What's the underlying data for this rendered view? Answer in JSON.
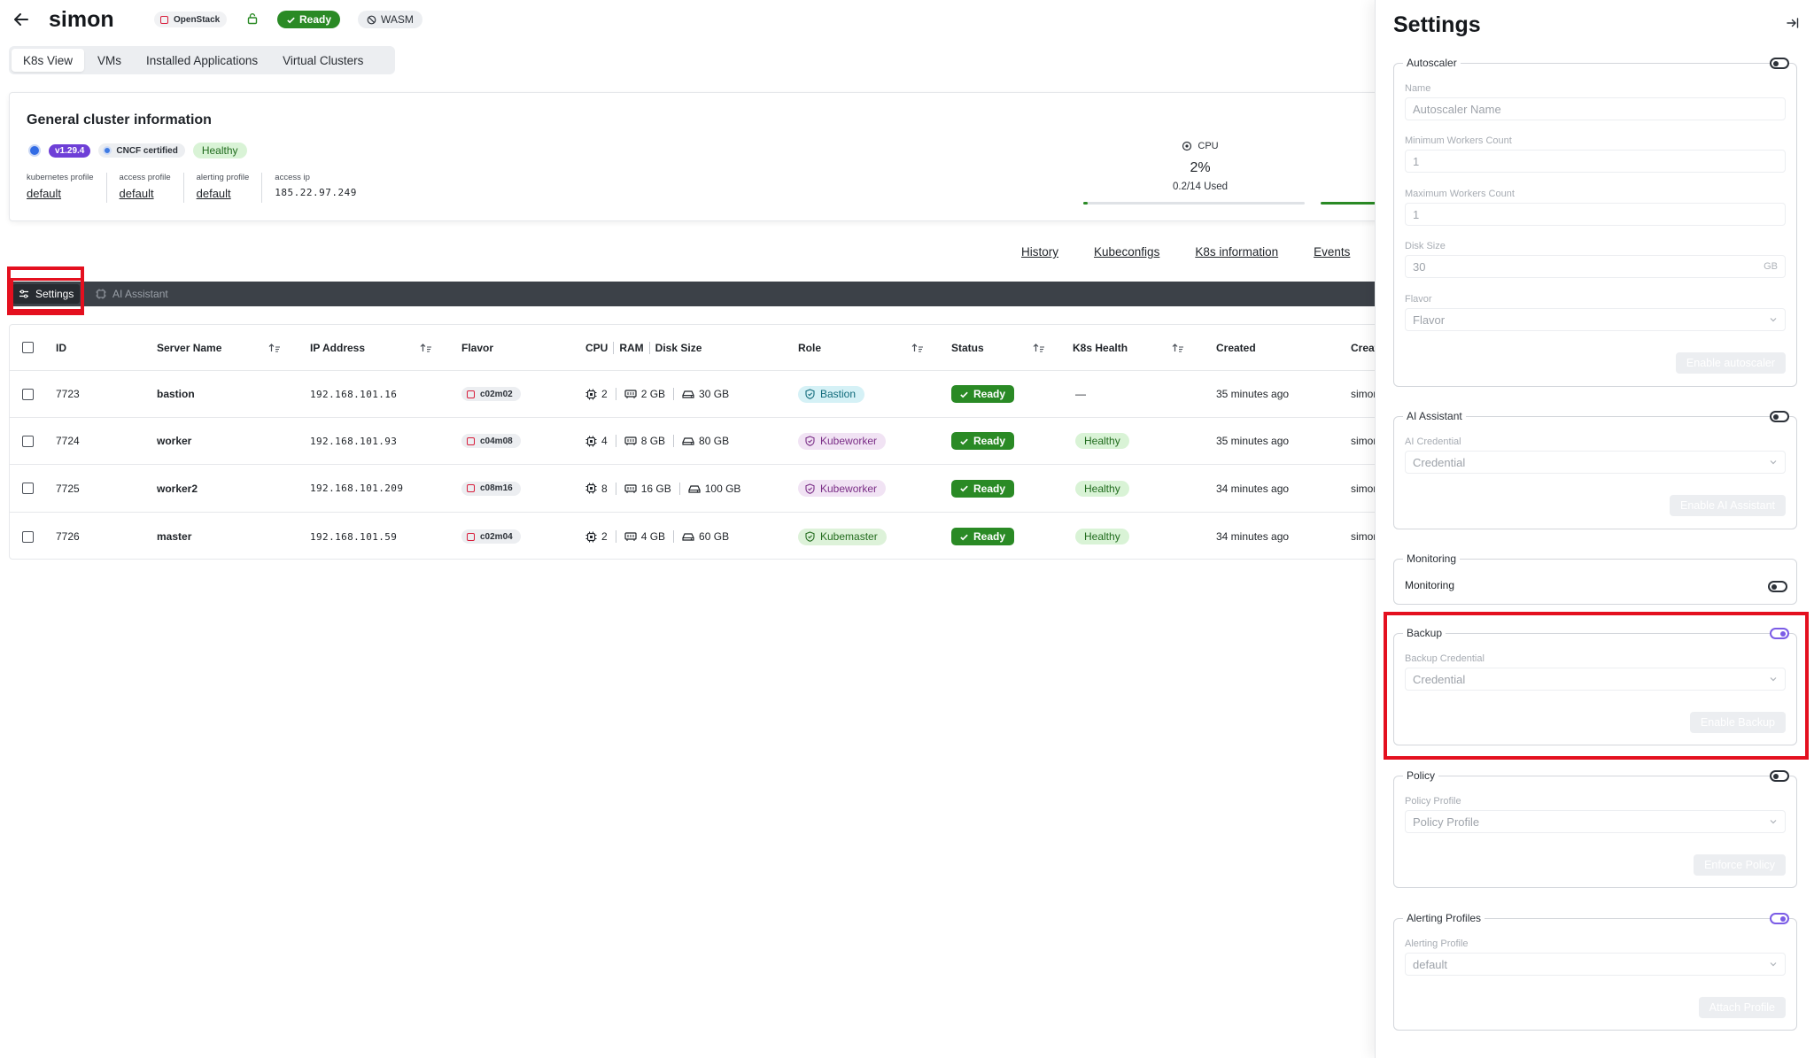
{
  "header": {
    "cluster_name": "simon",
    "provider": "OpenStack",
    "status": "Ready",
    "runtime": "WASM"
  },
  "tabs": [
    "K8s View",
    "VMs",
    "Installed Applications",
    "Virtual Clusters"
  ],
  "info": {
    "title": "General cluster information",
    "version": "v1.29.4",
    "cncf": "CNCF certified",
    "health": "Healthy",
    "profiles": [
      {
        "label": "kubernetes profile",
        "value": "default"
      },
      {
        "label": "access profile",
        "value": "default"
      },
      {
        "label": "alerting profile",
        "value": "default"
      },
      {
        "label": "access ip",
        "value": "185.22.97.249"
      }
    ],
    "cpu": {
      "label": "CPU",
      "percent": "2%",
      "used": "0.2/14 Used",
      "fraction": 0.02
    }
  },
  "sub_links": [
    "History",
    "Kubeconfigs",
    "K8s information",
    "Events"
  ],
  "toolbar": {
    "settings": "Settings",
    "ai": "AI Assistant"
  },
  "table": {
    "headers": {
      "id": "ID",
      "name": "Server Name",
      "ip": "IP Address",
      "flavor": "Flavor",
      "cpu": "CPU",
      "ram": "RAM",
      "disk": "Disk Size",
      "role": "Role",
      "status": "Status",
      "health": "K8s Health",
      "created": "Created",
      "creator": "Creat"
    },
    "rows": [
      {
        "id": "7723",
        "name": "bastion",
        "ip": "192.168.101.16",
        "flavor": "c02m02",
        "cpu": "2",
        "ram": "2 GB",
        "disk": "30 GB",
        "role": "Bastion",
        "status": "Ready",
        "health": "—",
        "created": "35 minutes ago",
        "creator": "simon"
      },
      {
        "id": "7724",
        "name": "worker",
        "ip": "192.168.101.93",
        "flavor": "c04m08",
        "cpu": "4",
        "ram": "8 GB",
        "disk": "80 GB",
        "role": "Kubeworker",
        "status": "Ready",
        "health": "Healthy",
        "created": "35 minutes ago",
        "creator": "simon"
      },
      {
        "id": "7725",
        "name": "worker2",
        "ip": "192.168.101.209",
        "flavor": "c08m16",
        "cpu": "8",
        "ram": "16 GB",
        "disk": "100 GB",
        "role": "Kubeworker",
        "status": "Ready",
        "health": "Healthy",
        "created": "34 minutes ago",
        "creator": "simon"
      },
      {
        "id": "7726",
        "name": "master",
        "ip": "192.168.101.59",
        "flavor": "c02m04",
        "cpu": "2",
        "ram": "4 GB",
        "disk": "60 GB",
        "role": "Kubemaster",
        "status": "Ready",
        "health": "Healthy",
        "created": "34 minutes ago",
        "creator": "simon"
      }
    ]
  },
  "panel": {
    "title": "Settings",
    "autoscaler": {
      "legend": "Autoscaler",
      "name_label": "Name",
      "name_placeholder": "Autoscaler Name",
      "min_label": "Minimum Workers Count",
      "min_value": "1",
      "max_label": "Maximum Workers Count",
      "max_value": "1",
      "disk_label": "Disk Size",
      "disk_value": "30",
      "disk_unit": "GB",
      "flavor_label": "Flavor",
      "flavor_placeholder": "Flavor",
      "button": "Enable autoscaler"
    },
    "ai": {
      "legend": "AI Assistant",
      "credential_label": "AI Credential",
      "credential_placeholder": "Credential",
      "button": "Enable AI Assistant"
    },
    "monitoring": {
      "legend": "Monitoring",
      "label": "Monitoring"
    },
    "backup": {
      "legend": "Backup",
      "credential_label": "Backup Credential",
      "credential_placeholder": "Credential",
      "button": "Enable Backup"
    },
    "policy": {
      "legend": "Policy",
      "profile_label": "Policy Profile",
      "profile_placeholder": "Policy Profile",
      "button": "Enforce Policy"
    },
    "alerting": {
      "legend": "Alerting Profiles",
      "profile_label": "Alerting Profile",
      "profile_value": "default",
      "button": "Attach Profile"
    }
  }
}
